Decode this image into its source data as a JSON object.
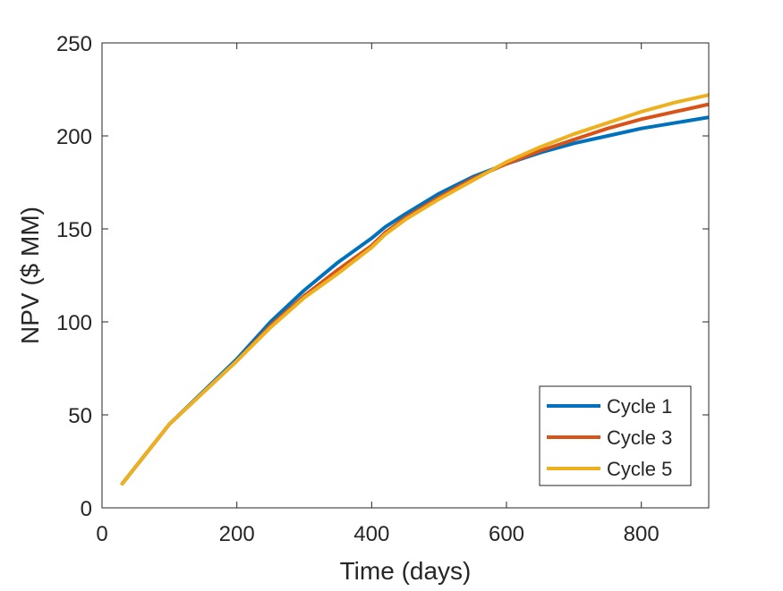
{
  "chart_data": {
    "type": "line",
    "title": "",
    "xlabel": "Time (days)",
    "ylabel": "NPV ($ MM)",
    "xlim": [
      0,
      900
    ],
    "ylim": [
      0,
      250
    ],
    "xticks": [
      0,
      200,
      400,
      600,
      800
    ],
    "yticks": [
      0,
      50,
      100,
      150,
      200,
      250
    ],
    "xtick_labels": [
      "0",
      "200",
      "400",
      "600",
      "800"
    ],
    "ytick_labels": [
      "0",
      "50",
      "100",
      "150",
      "200",
      "250"
    ],
    "grid": false,
    "legend_position": "bottom-right",
    "series": [
      {
        "name": "Cycle 1",
        "color": "#0072BD",
        "x": [
          30,
          100,
          200,
          250,
          300,
          350,
          400,
          420,
          450,
          500,
          550,
          600,
          650,
          700,
          750,
          800,
          850,
          900
        ],
        "y": [
          13,
          45,
          80,
          100,
          117,
          132,
          145,
          151,
          158,
          169,
          178,
          185,
          191,
          196,
          200,
          204,
          207,
          210
        ]
      },
      {
        "name": "Cycle 3",
        "color": "#D95319",
        "x": [
          30,
          100,
          200,
          250,
          300,
          350,
          400,
          420,
          450,
          500,
          550,
          600,
          650,
          700,
          750,
          800,
          850,
          900
        ],
        "y": [
          13,
          45,
          79,
          98,
          114,
          128,
          141,
          148,
          156,
          167,
          177,
          185,
          192,
          198,
          204,
          209,
          213,
          217
        ]
      },
      {
        "name": "Cycle 5",
        "color": "#EDB120",
        "x": [
          30,
          100,
          200,
          250,
          300,
          350,
          400,
          420,
          450,
          500,
          550,
          600,
          650,
          700,
          750,
          800,
          850,
          900
        ],
        "y": [
          13,
          45,
          79,
          97,
          113,
          126,
          140,
          147,
          155,
          166,
          176,
          186,
          194,
          201,
          207,
          213,
          218,
          222
        ]
      }
    ]
  }
}
